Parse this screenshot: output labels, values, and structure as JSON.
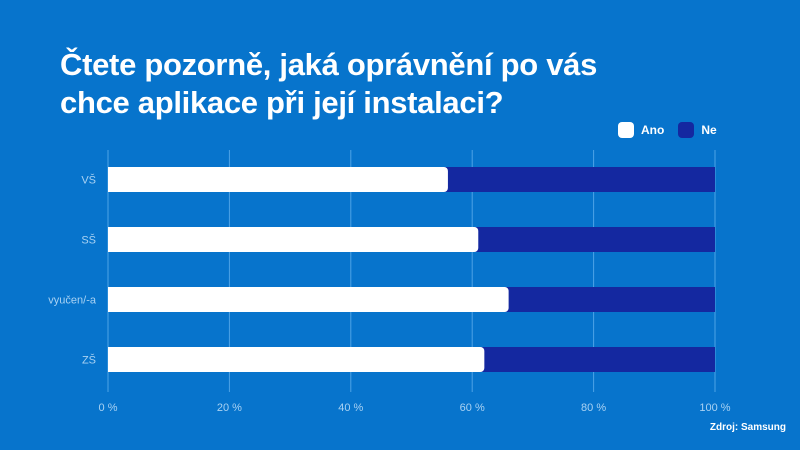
{
  "chart_data": {
    "type": "bar",
    "orientation": "horizontal",
    "stacked": true,
    "title": "Čtete pozorně, jaká oprávnění po vás chce aplikace při její instalaci?",
    "categories": [
      "VŠ",
      "SŠ",
      "vyučen/-a",
      "ZŠ"
    ],
    "series": [
      {
        "name": "Ano",
        "color": "#ffffff",
        "values": [
          56,
          61,
          66,
          62
        ]
      },
      {
        "name": "Ne",
        "color": "#1428a0",
        "values": [
          44,
          39,
          34,
          38
        ]
      }
    ],
    "xlim": [
      0,
      100
    ],
    "xticks": [
      "0 %",
      "20 %",
      "40 %",
      "60 %",
      "80 %",
      "100 %"
    ],
    "grid": true,
    "legend_position": "top-right"
  },
  "source": "Zdroj: Samsung",
  "background_color": "#0774cc"
}
